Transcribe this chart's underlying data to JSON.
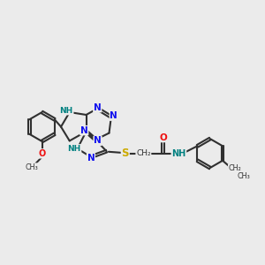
{
  "bg_color": "#ebebeb",
  "C_color": "#303030",
  "N_blue": "#1010ee",
  "N_teal": "#008080",
  "O_color": "#ee1010",
  "S_color": "#ccaa00",
  "bond_color": "#303030",
  "bond_lw": 1.5,
  "xlim": [
    0,
    10
  ],
  "ylim": [
    1.5,
    7.5
  ]
}
